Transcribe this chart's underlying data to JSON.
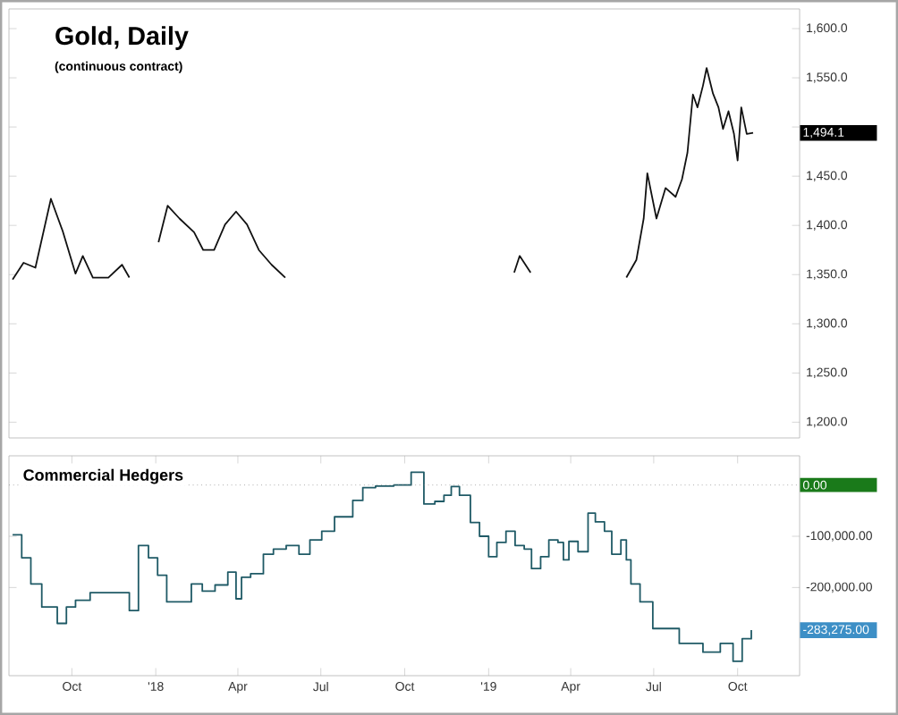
{
  "chart_data": [
    {
      "type": "line",
      "title": "Gold, Daily",
      "subtitle": "(continuous contract)",
      "color": "#111111",
      "line_style": "solid",
      "marker": "none",
      "grid": false,
      "tick_labels": "y",
      "x": [
        "2017-07-28",
        "2017-08-09",
        "2017-08-22",
        "2017-09-08",
        "2017-09-21",
        "2017-10-05",
        "2017-10-13",
        "2017-10-24",
        "2017-11-10",
        "2017-11-25",
        "2017-12-03",
        "2017-12-14",
        "2018-01-04",
        "2018-01-14",
        "2018-01-27",
        "2018-02-12",
        "2018-02-22",
        "2018-03-06",
        "2018-03-18",
        "2018-03-30",
        "2018-04-11",
        "2018-04-24",
        "2018-05-08",
        "2018-05-23",
        "2018-06-07",
        "2019-01-29",
        "2019-02-04",
        "2019-02-16",
        "2019-03-04",
        "2019-06-01",
        "2019-06-12",
        "2019-06-20",
        "2019-06-24",
        "2019-07-04",
        "2019-07-14",
        "2019-07-25",
        "2019-08-01",
        "2019-08-07",
        "2019-08-13",
        "2019-08-18",
        "2019-08-24",
        "2019-08-28",
        "2019-09-04",
        "2019-09-10",
        "2019-09-15",
        "2019-09-21",
        "2019-09-27",
        "2019-10-01",
        "2019-10-05",
        "2019-10-11",
        "2019-10-18"
      ],
      "values": [
        1345,
        1362,
        1357,
        1427,
        1394,
        1351,
        1369,
        1347,
        1347,
        1360,
        1347,
        null,
        1383,
        1420,
        1407,
        1393,
        1375,
        1375,
        1401,
        1414,
        1401,
        1375,
        1360,
        1347,
        null,
        1352,
        1369,
        1352,
        null,
        1347,
        1365,
        1407,
        1453,
        1407,
        1438,
        1429,
        1447,
        1474,
        1533,
        1520,
        1542,
        1560,
        1534,
        1520,
        1498,
        1516,
        1493,
        1466,
        1520,
        1493,
        1494
      ],
      "xlim": [
        "2017-07-24",
        "2019-12-08"
      ],
      "ylim": [
        1184,
        1620
      ],
      "yticks": [
        {
          "value": 1200,
          "label": "1,200.0"
        },
        {
          "value": 1250,
          "label": "1,250.0"
        },
        {
          "value": 1300,
          "label": "1,300.0"
        },
        {
          "value": 1350,
          "label": "1,350.0"
        },
        {
          "value": 1400,
          "label": "1,400.0"
        },
        {
          "value": 1450,
          "label": "1,450.0"
        },
        {
          "value": 1500,
          "label": null
        },
        {
          "value": 1550,
          "label": "1,550.0"
        },
        {
          "value": 1600,
          "label": "1,600.0"
        }
      ],
      "annotations": [
        "1,494.1"
      ]
    },
    {
      "type": "step",
      "title": "Commercial Hedgers",
      "color": "#1f5a66",
      "line_style": "solid",
      "marker": "none",
      "grid": false,
      "x": [
        "2017-07-28",
        "2017-08-07",
        "2017-08-17",
        "2017-08-29",
        "2017-09-15",
        "2017-09-25",
        "2017-10-05",
        "2017-10-21",
        "2017-11-15",
        "2017-12-03",
        "2017-12-13",
        "2017-12-24",
        "2018-01-03",
        "2018-01-13",
        "2018-01-27",
        "2018-02-09",
        "2018-02-21",
        "2018-03-07",
        "2018-03-21",
        "2018-03-30",
        "2018-04-05",
        "2018-04-15",
        "2018-04-29",
        "2018-05-10",
        "2018-05-24",
        "2018-06-07",
        "2018-06-19",
        "2018-07-02",
        "2018-07-16",
        "2018-08-05",
        "2018-08-16",
        "2018-08-30",
        "2018-09-19",
        "2018-10-08",
        "2018-10-22",
        "2018-11-03",
        "2018-11-13",
        "2018-11-21",
        "2018-11-30",
        "2018-12-12",
        "2018-12-22",
        "2019-01-01",
        "2019-01-10",
        "2019-01-20",
        "2019-01-30",
        "2019-02-09",
        "2019-02-17",
        "2019-02-27",
        "2019-03-08",
        "2019-03-18",
        "2019-03-24",
        "2019-03-30",
        "2019-04-09",
        "2019-04-20",
        "2019-04-28",
        "2019-05-08",
        "2019-05-16",
        "2019-05-26",
        "2019-06-01",
        "2019-06-06",
        "2019-06-16",
        "2019-06-30",
        "2019-07-14",
        "2019-07-29",
        "2019-08-24",
        "2019-09-12",
        "2019-09-26",
        "2019-10-06",
        "2019-10-16"
      ],
      "values": [
        -97000,
        -142000,
        -193000,
        -238000,
        -270000,
        -238000,
        -225000,
        -210000,
        -210000,
        -245000,
        -118000,
        -142000,
        -176000,
        -228000,
        -228000,
        -193000,
        -207000,
        -195000,
        -170000,
        -222000,
        -180000,
        -173000,
        -135000,
        -125000,
        -118000,
        -135000,
        -107000,
        -90000,
        -62000,
        -30000,
        -5000,
        -2000,
        0,
        25000,
        -37000,
        -32000,
        -20000,
        -3000,
        -20000,
        -73000,
        -100000,
        -140000,
        -112000,
        -90000,
        -118000,
        -125000,
        -163000,
        -140000,
        -107000,
        -112000,
        -146000,
        -110000,
        -130000,
        -55000,
        -72000,
        -90000,
        -135000,
        -107000,
        -146000,
        -193000,
        -228000,
        -280000,
        -280000,
        -309000,
        -326000,
        -309000,
        -344000,
        -300000,
        -283275
      ],
      "xlim": [
        "2017-07-24",
        "2019-12-08"
      ],
      "ylim": [
        -372000,
        57000
      ],
      "xticks": [
        {
          "value": "2017-10-01",
          "label": "Oct"
        },
        {
          "value": "2018-01-01",
          "label": "'18"
        },
        {
          "value": "2018-04-01",
          "label": "Apr"
        },
        {
          "value": "2018-07-01",
          "label": "Jul"
        },
        {
          "value": "2018-10-01",
          "label": "Oct"
        },
        {
          "value": "2019-01-01",
          "label": "'19"
        },
        {
          "value": "2019-04-01",
          "label": "Apr"
        },
        {
          "value": "2019-07-01",
          "label": "Jul"
        },
        {
          "value": "2019-10-01",
          "label": "Oct"
        }
      ],
      "yticks": [
        {
          "value": -200000,
          "label": "-200,000.00"
        },
        {
          "value": -100000,
          "label": "-100,000.00"
        }
      ],
      "ref_lines": [
        {
          "axis": "y",
          "value": 0,
          "label": "0.00",
          "line_style": "dotted"
        }
      ],
      "annotations": [
        "-283,275.00"
      ]
    }
  ]
}
